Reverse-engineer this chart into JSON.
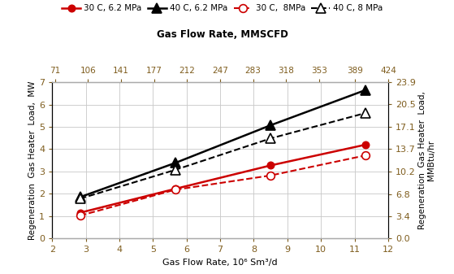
{
  "x_data": [
    2.83,
    5.66,
    8.5,
    11.33
  ],
  "series": [
    {
      "label": "30 C, 6.2 MPa",
      "y": [
        1.15,
        2.22,
        3.27,
        4.2
      ],
      "color": "#cc0000",
      "linestyle": "solid",
      "marker": "o",
      "markersize": 6,
      "markerfacecolor": "#cc0000",
      "linewidth": 1.8
    },
    {
      "label": "40 C, 6.2 MPa",
      "y": [
        1.85,
        3.38,
        5.07,
        6.65
      ],
      "color": "#000000",
      "linestyle": "solid",
      "marker": "^",
      "markersize": 8,
      "markerfacecolor": "#000000",
      "linewidth": 1.8
    },
    {
      "label": "30 C,  8MPa",
      "y": [
        1.02,
        2.18,
        2.82,
        3.72
      ],
      "color": "#cc0000",
      "linestyle": "dashed",
      "marker": "o",
      "markersize": 7,
      "markerfacecolor": "white",
      "linewidth": 1.5
    },
    {
      "label": "40 C, 8 MPa",
      "y": [
        1.78,
        3.07,
        4.48,
        5.62
      ],
      "color": "#000000",
      "linestyle": "dashed",
      "marker": "^",
      "markersize": 8,
      "markerfacecolor": "white",
      "linewidth": 1.5
    }
  ],
  "xlabel_bottom": "Gas Flow Rate, 10⁶ Sm³/d",
  "xlabel_top": "Gas Flow Rate, MMSCFD",
  "ylabel_left": "Regeneration  Gas Heater  Load,  MW",
  "ylabel_right": "Regeneration  Gas Heater  Load,\nMMBtu/hr",
  "xlim": [
    2,
    12
  ],
  "ylim_left": [
    0,
    7
  ],
  "ylim_right": [
    0.0,
    23.9
  ],
  "yticks_left": [
    0,
    1,
    2,
    3,
    4,
    5,
    6,
    7
  ],
  "yticks_right_vals": [
    0.0,
    3.4,
    6.8,
    10.2,
    13.7,
    17.1,
    20.5,
    23.9
  ],
  "yticks_right_labels": [
    "0.0",
    "3.4",
    "6.8",
    "10.2",
    "13.7",
    "17.1",
    "20.5",
    "23.9"
  ],
  "xticks_bottom": [
    2,
    3,
    4,
    5,
    6,
    7,
    8,
    9,
    10,
    11,
    12
  ],
  "top_tick_labels": [
    "71",
    "106",
    "141",
    "177",
    "212",
    "247",
    "283",
    "318",
    "353",
    "389",
    "424"
  ],
  "top_tick_positions": [
    2.083,
    3.1,
    4.12,
    5.13,
    6.15,
    7.17,
    8.18,
    9.2,
    10.22,
    11.31,
    12.34
  ],
  "tick_label_color": "#7f5d1e",
  "axis_label_color": "#000000",
  "background_color": "#ffffff",
  "grid_color": "#c8c8c8"
}
